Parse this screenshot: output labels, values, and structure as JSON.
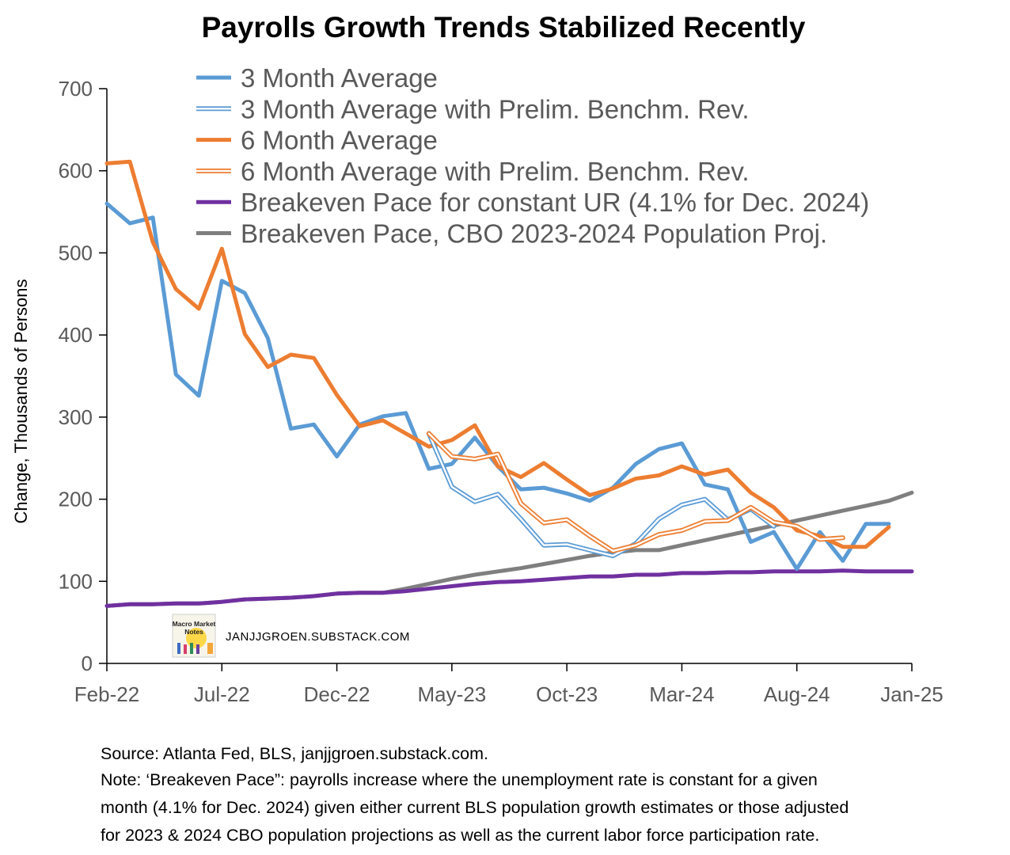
{
  "chart_data": {
    "type": "line",
    "title": "Payrolls Growth Trends Stabilized Recently",
    "ylabel": "Change, Thousands of Persons",
    "xlabel": "",
    "ylim": [
      0,
      700
    ],
    "yticks": [
      0,
      100,
      200,
      300,
      400,
      500,
      600,
      700
    ],
    "xticks": [
      "Feb-22",
      "Jul-22",
      "Dec-22",
      "May-23",
      "Oct-23",
      "Mar-24",
      "Aug-24",
      "Jan-25"
    ],
    "x_start": "Feb-22",
    "x_end": "Jan-25",
    "legend_position": "top",
    "grid": false,
    "series": [
      {
        "name": "3 Month Average",
        "color": "#5b9bd5",
        "style": "solid",
        "start": "Feb-22",
        "values": [
          560,
          536,
          543,
          352,
          326,
          466,
          451,
          396,
          286,
          291,
          252,
          291,
          301,
          305,
          237,
          243,
          275,
          240,
          212,
          214,
          207,
          198,
          214,
          243,
          261,
          268,
          218,
          212,
          148,
          160,
          115,
          160,
          125,
          170,
          170
        ]
      },
      {
        "name": "3 Month Average with Prelim. Benchm. Rev.",
        "color": "#5b9bd5",
        "style": "double",
        "start": "Apr-23",
        "values": [
          280,
          215,
          197,
          206,
          176,
          144,
          145,
          138,
          131,
          146,
          176,
          193,
          200,
          175,
          188,
          167
        ]
      },
      {
        "name": "6 Month Average",
        "color": "#ed7d31",
        "style": "solid",
        "start": "Feb-22",
        "values": [
          609,
          611,
          513,
          456,
          432,
          505,
          401,
          361,
          376,
          372,
          327,
          289,
          296,
          280,
          264,
          272,
          290,
          240,
          227,
          244,
          224,
          205,
          213,
          225,
          229,
          240,
          230,
          236,
          208,
          190,
          162,
          155,
          142,
          142,
          166
        ]
      },
      {
        "name": "6 Month Average with Prelim. Benchm. Rev.",
        "color": "#ed7d31",
        "style": "double",
        "start": "Apr-23",
        "values": [
          280,
          252,
          249,
          255,
          195,
          171,
          175,
          155,
          137,
          144,
          157,
          162,
          173,
          174,
          190,
          172,
          167,
          151,
          153
        ]
      },
      {
        "name": "Breakeven Pace for constant UR (4.1% for Dec. 2024)",
        "color": "#7030a0",
        "style": "solid",
        "start": "Feb-22",
        "values": [
          70,
          72,
          72,
          73,
          73,
          75,
          78,
          79,
          80,
          82,
          85,
          86,
          86,
          88,
          91,
          94,
          97,
          99,
          100,
          102,
          104,
          106,
          106,
          108,
          108,
          110,
          110,
          111,
          111,
          112,
          112,
          112,
          113,
          112,
          112,
          112
        ]
      },
      {
        "name": "Breakeven Pace, CBO 2023-2024 Population Proj.",
        "color": "#7f7f7f",
        "style": "solid",
        "start": "Feb-22",
        "values": [
          70,
          72,
          72,
          73,
          73,
          75,
          78,
          79,
          80,
          82,
          85,
          86,
          86,
          91,
          97,
          103,
          108,
          112,
          116,
          121,
          126,
          131,
          135,
          138,
          138,
          144,
          150,
          156,
          162,
          168,
          174,
          180,
          186,
          192,
          198,
          208
        ]
      }
    ]
  },
  "watermark": {
    "logo_text": "Macro Market Notes",
    "text": "JANJJGROEN.SUBSTACK.COM"
  },
  "footnote": {
    "source": "Source: Atlanta Fed, BLS, janjjgroen.substack.com.",
    "note_line1": "Note: ‘Breakeven Pace”: payrolls increase where the unemployment rate is constant for a given",
    "note_line2": "month (4.1% for Dec. 2024) given either current BLS population growth estimates or those adjusted",
    "note_line3": "for 2023 & 2024 CBO population projections as well as the current labor force participation rate."
  }
}
